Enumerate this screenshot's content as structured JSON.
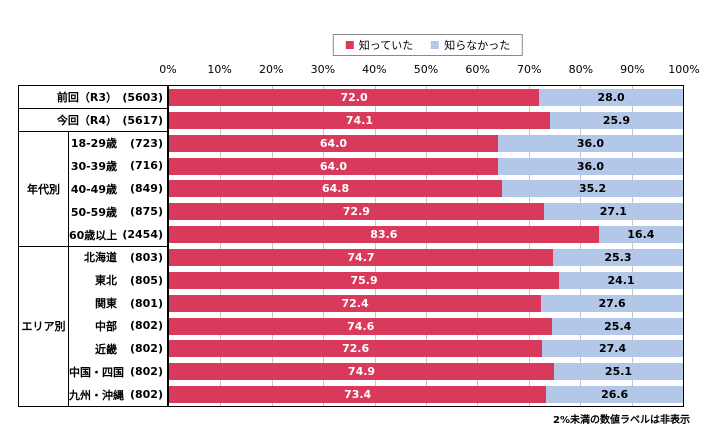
{
  "legend": {
    "items": [
      {
        "label": "知っていた"
      },
      {
        "label": "知らなかった"
      }
    ]
  },
  "axis": {
    "tick_labels": [
      "0%",
      "10%",
      "20%",
      "30%",
      "40%",
      "50%",
      "60%",
      "70%",
      "80%",
      "90%",
      "100%"
    ]
  },
  "groups": [
    {
      "name": "年代別",
      "start": 2,
      "count": 5
    },
    {
      "name": "エリア別",
      "start": 7,
      "count": 7
    }
  ],
  "rows": [
    {
      "label": "前回（R3）",
      "n": "(5603)"
    },
    {
      "label": "今回（R4）",
      "n": "(5617)"
    },
    {
      "label": "18-29歳",
      "n": "(723)"
    },
    {
      "label": "30-39歳",
      "n": "(716)"
    },
    {
      "label": "40-49歳",
      "n": "(849)"
    },
    {
      "label": "50-59歳",
      "n": "(875)"
    },
    {
      "label": "60歳以上",
      "n": "(2454)"
    },
    {
      "label": "北海道",
      "n": "(803)"
    },
    {
      "label": "東北",
      "n": "(805)"
    },
    {
      "label": "関東",
      "n": "(801)"
    },
    {
      "label": "中部",
      "n": "(802)"
    },
    {
      "label": "近畿",
      "n": "(802)"
    },
    {
      "label": "中国・四国",
      "n": "(802)"
    },
    {
      "label": "九州・沖縄",
      "n": "(802)"
    }
  ],
  "footnote": "2%未満の数値ラベルは非表示",
  "colors": {
    "knew": "#d93a5c",
    "unknown": "#b3c7e8",
    "grid": "#c6c6c6",
    "border": "#000000",
    "value_on_knew": "#ffffff",
    "value_on_unknown": "#000000"
  },
  "chart_data": {
    "type": "bar",
    "orientation": "horizontal",
    "stacked": true,
    "categories": [
      "前回（R3）(5603)",
      "今回（R4）(5617)",
      "18-29歳 (723)",
      "30-39歳 (716)",
      "40-49歳 (849)",
      "50-59歳 (875)",
      "60歳以上 (2454)",
      "北海道 (803)",
      "東北 (805)",
      "関東 (801)",
      "中部 (802)",
      "近畿 (802)",
      "中国・四国 (802)",
      "九州・沖縄 (802)"
    ],
    "category_groups": [
      {
        "name": "年代別",
        "categories": [
          "18-29歳",
          "30-39歳",
          "40-49歳",
          "50-59歳",
          "60歳以上"
        ]
      },
      {
        "name": "エリア別",
        "categories": [
          "北海道",
          "東北",
          "関東",
          "中部",
          "近畿",
          "中国・四国",
          "九州・沖縄"
        ]
      }
    ],
    "series": [
      {
        "name": "知っていた",
        "color": "#d93a5c",
        "values": [
          72.0,
          74.1,
          64.0,
          64.0,
          64.8,
          72.9,
          83.6,
          74.7,
          75.9,
          72.4,
          74.6,
          72.6,
          74.9,
          73.4
        ]
      },
      {
        "name": "知らなかった",
        "color": "#b3c7e8",
        "values": [
          28.0,
          25.9,
          36.0,
          36.0,
          35.2,
          27.1,
          16.4,
          25.3,
          24.1,
          27.6,
          25.4,
          27.4,
          25.1,
          26.6
        ]
      }
    ],
    "xlim": [
      0,
      100
    ],
    "grid": true,
    "legend_position": "top",
    "value_labels": "one-decimal",
    "note": "2%未満の数値ラベルは非表示"
  }
}
